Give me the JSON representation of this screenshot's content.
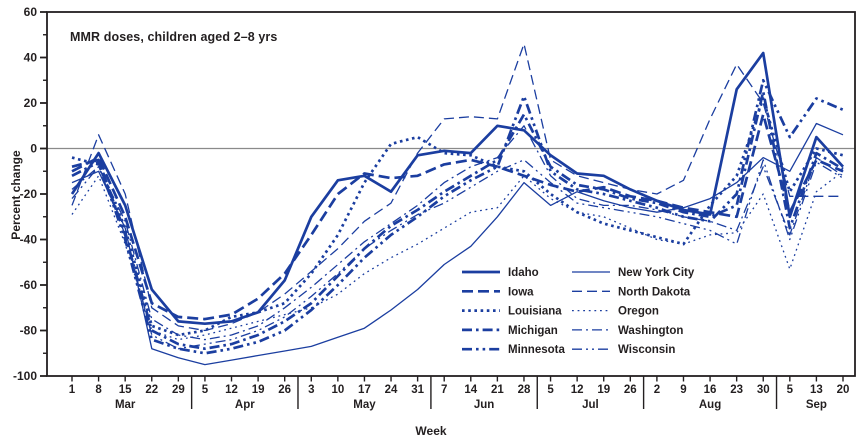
{
  "figure": {
    "title": "MMR doses, children aged 2–8 yrs",
    "y_axis": {
      "label": "Percent change",
      "min": -100,
      "max": 60,
      "major_tick_labels": [
        "60",
        "40",
        "20",
        "0",
        "-20",
        "-40",
        "-60",
        "-80",
        "-100"
      ],
      "minor_tick_values": [
        50,
        30,
        10,
        -10,
        -30,
        -50,
        -70,
        -90
      ]
    },
    "x_axis": {
      "label": "Week",
      "months": [
        {
          "name": "Mar",
          "weeks": [
            "1",
            "8",
            "15",
            "22",
            "29"
          ]
        },
        {
          "name": "Apr",
          "weeks": [
            "5",
            "12",
            "19",
            "26"
          ]
        },
        {
          "name": "May",
          "weeks": [
            "3",
            "10",
            "17",
            "24",
            "31"
          ]
        },
        {
          "name": "Jun",
          "weeks": [
            "7",
            "14",
            "21",
            "28"
          ]
        },
        {
          "name": "Jul",
          "weeks": [
            "5",
            "12",
            "19",
            "26"
          ]
        },
        {
          "name": "Aug",
          "weeks": [
            "2",
            "9",
            "16",
            "23",
            "30"
          ]
        },
        {
          "name": "Sep",
          "weeks": [
            "5",
            "13",
            "20"
          ]
        }
      ]
    },
    "colors": {
      "line_blue": "#1b3ea0",
      "axis": "#231f20",
      "zero_line": "#8a8a8a",
      "background": "#ffffff"
    }
  },
  "chart_data": {
    "type": "line",
    "title": "MMR doses, children aged 2–8 yrs",
    "xlabel": "Week",
    "ylabel": "Percent change",
    "ylim": [
      -100,
      60
    ],
    "grid": false,
    "legend_position": "inside lower right, two columns",
    "x_categories": [
      "Mar 1",
      "Mar 8",
      "Mar 15",
      "Mar 22",
      "Mar 29",
      "Apr 5",
      "Apr 12",
      "Apr 19",
      "Apr 26",
      "May 3",
      "May 10",
      "May 17",
      "May 24",
      "May 31",
      "Jun 7",
      "Jun 14",
      "Jun 21",
      "Jun 28",
      "Jul 5",
      "Jul 12",
      "Jul 19",
      "Jul 26",
      "Aug 2",
      "Aug 9",
      "Aug 16",
      "Aug 23",
      "Aug 30",
      "Sep 5",
      "Sep 13",
      "Sep 20"
    ],
    "series": [
      {
        "name": "Idaho",
        "weight": "thick",
        "dash": "solid",
        "values": [
          -20,
          -2,
          -25,
          -62,
          -76,
          -77,
          -76,
          -72,
          -58,
          -30,
          -14,
          -12,
          -19,
          -3,
          -1,
          -2,
          10,
          8,
          -3,
          -11,
          -12,
          -18,
          -23,
          -27,
          -29,
          26,
          42,
          -30,
          5,
          -8
        ]
      },
      {
        "name": "Iowa",
        "weight": "thick",
        "dash": "dashed",
        "values": [
          -10,
          -4,
          -30,
          -68,
          -74,
          -75,
          -73,
          -66,
          -55,
          -38,
          -20,
          -11,
          -13,
          -12,
          -7,
          -5,
          -8,
          -12,
          -16,
          -19,
          -17,
          -21,
          -23,
          -26,
          -28,
          -30,
          15,
          -28,
          -5,
          -10
        ]
      },
      {
        "name": "Louisiana",
        "weight": "thick",
        "dash": "dotted",
        "values": [
          -4,
          -7,
          -35,
          -78,
          -82,
          -80,
          -74,
          -72,
          -68,
          -55,
          -38,
          -15,
          2,
          5,
          -2,
          -3,
          -8,
          -10,
          -20,
          -28,
          -33,
          -36,
          -39,
          -42,
          -25,
          -12,
          22,
          -19,
          0,
          -3
        ]
      },
      {
        "name": "Michigan",
        "weight": "thick",
        "dash": "dashdot",
        "values": [
          -8,
          -5,
          -38,
          -80,
          -86,
          -88,
          -86,
          -82,
          -76,
          -68,
          -56,
          -44,
          -34,
          -27,
          -19,
          -12,
          -5,
          15,
          -8,
          -16,
          -18,
          -22,
          -24,
          -28,
          -30,
          -25,
          25,
          -35,
          -2,
          -9
        ]
      },
      {
        "name": "Minnesota",
        "weight": "thick",
        "dash": "dashdotdot",
        "values": [
          -12,
          -6,
          -40,
          -84,
          -88,
          -90,
          -88,
          -85,
          -80,
          -71,
          -60,
          -48,
          -38,
          -30,
          -21,
          -14,
          -8,
          23,
          -10,
          -18,
          -20,
          -23,
          -26,
          -30,
          -32,
          -20,
          30,
          5,
          22,
          17
        ]
      },
      {
        "name": "New York City",
        "weight": "thin",
        "dash": "solid",
        "values": [
          -15,
          -10,
          -35,
          -88,
          -92,
          -95,
          -93,
          -91,
          -89,
          -87,
          -83,
          -79,
          -71,
          -62,
          -51,
          -43,
          -30,
          -15,
          -25,
          -19,
          -23,
          -26,
          -28,
          -26,
          -22,
          -15,
          -4,
          -10,
          11,
          6
        ]
      },
      {
        "name": "North Dakota",
        "weight": "thin",
        "dash": "dashed",
        "values": [
          -25,
          6,
          -20,
          -70,
          -78,
          -80,
          -77,
          -72,
          -64,
          -54,
          -44,
          -32,
          -24,
          -2,
          13,
          14,
          13,
          46,
          -5,
          -12,
          -15,
          -18,
          -20,
          -14,
          13,
          37,
          20,
          -21,
          -21,
          -21
        ]
      },
      {
        "name": "Oregon",
        "weight": "thin",
        "dash": "dotted",
        "values": [
          -29,
          -12,
          -42,
          -80,
          -84,
          -82,
          -79,
          -76,
          -73,
          -70,
          -64,
          -55,
          -48,
          -42,
          -35,
          -28,
          -26,
          -12,
          -22,
          -28,
          -30,
          -35,
          -40,
          -42,
          -38,
          -37,
          -20,
          -53,
          -19,
          -10
        ]
      },
      {
        "name": "Washington",
        "weight": "thin",
        "dash": "dashdot",
        "values": [
          -18,
          -8,
          -32,
          -75,
          -82,
          -84,
          -82,
          -78,
          -70,
          -61,
          -51,
          -41,
          -33,
          -25,
          -15,
          -8,
          -4,
          10,
          -12,
          -22,
          -25,
          -25,
          -27,
          -30,
          -32,
          -36,
          -8,
          -38,
          -4,
          -12
        ]
      },
      {
        "name": "Wisconsin",
        "weight": "thin",
        "dash": "dashdotdot",
        "values": [
          -22,
          -8,
          -38,
          -82,
          -88,
          -86,
          -84,
          -80,
          -74,
          -65,
          -55,
          -44,
          -36,
          -29,
          -24,
          -17,
          -10,
          -5,
          -15,
          -24,
          -26,
          -28,
          -30,
          -33,
          -36,
          -42,
          -5,
          -40,
          -6,
          -13
        ]
      }
    ]
  }
}
